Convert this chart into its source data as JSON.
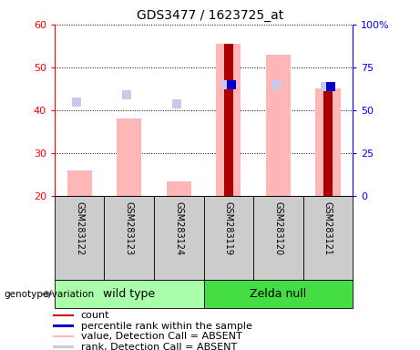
{
  "title": "GDS3477 / 1623725_at",
  "samples": [
    "GSM283122",
    "GSM283123",
    "GSM283124",
    "GSM283119",
    "GSM283120",
    "GSM283121"
  ],
  "group_labels": [
    "wild type",
    "Zelda null"
  ],
  "group_colors": [
    "#aaffaa",
    "#44dd44"
  ],
  "ylim_left": [
    20,
    60
  ],
  "ylim_right": [
    0,
    100
  ],
  "yticks_left": [
    20,
    30,
    40,
    50,
    60
  ],
  "yticks_right": [
    0,
    25,
    50,
    75,
    100
  ],
  "yticklabels_right": [
    "0",
    "25",
    "50",
    "75",
    "100%"
  ],
  "value_bars": [
    26,
    38,
    23.5,
    55.5,
    53,
    45
  ],
  "rank_dots": [
    42,
    43.5,
    41.5,
    46,
    46,
    45.5
  ],
  "count_bars": [
    null,
    null,
    null,
    55.5,
    null,
    45
  ],
  "percentile_dots": [
    null,
    null,
    null,
    46,
    null,
    45.5
  ],
  "bar_bottom": 20,
  "value_color": "#ffb6b6",
  "rank_color": "#c8c8e8",
  "count_color": "#aa0000",
  "percentile_color": "#0000cc",
  "legend_items": [
    {
      "label": "count",
      "color": "#cc0000"
    },
    {
      "label": "percentile rank within the sample",
      "color": "#0000cc"
    },
    {
      "label": "value, Detection Call = ABSENT",
      "color": "#ffb6b6"
    },
    {
      "label": "rank, Detection Call = ABSENT",
      "color": "#c8c8e8"
    }
  ],
  "value_bar_width": 0.5,
  "count_bar_width": 0.18,
  "dot_size": 55,
  "label_bg": "#cccccc",
  "title_fontsize": 10,
  "tick_fontsize": 8,
  "sample_fontsize": 7,
  "legend_fontsize": 8,
  "group_fontsize": 9
}
